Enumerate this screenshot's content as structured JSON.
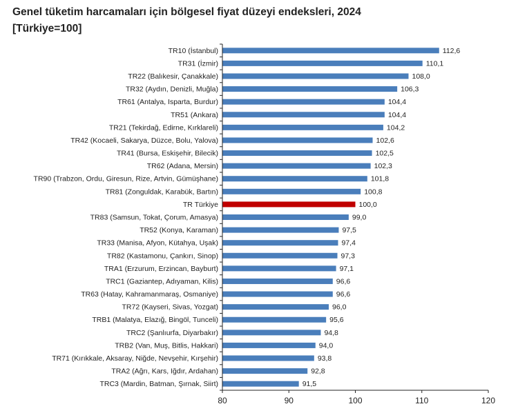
{
  "chart_data": {
    "type": "bar",
    "orientation": "horizontal",
    "title": "Genel tüketim harcamaları için bölgesel fiyat düzeyi endeksleri, 2024",
    "subtitle": "[Türkiye=100]",
    "categories": [
      "TR10 (İstanbul)",
      "TR31 (İzmir)",
      "TR22 (Balıkesir, Çanakkale)",
      "TR32 (Aydın, Denizli, Muğla)",
      "TR61 (Antalya, Isparta, Burdur)",
      "TR51 (Ankara)",
      "TR21 (Tekirdağ, Edirne, Kırklareli)",
      "TR42 (Kocaeli, Sakarya, Düzce, Bolu, Yalova)",
      "TR41 (Bursa, Eskişehir, Bilecik)",
      "TR62 (Adana, Mersin)",
      "TR90 (Trabzon, Ordu, Giresun, Rize, Artvin, Gümüşhane)",
      "TR81 (Zonguldak, Karabük, Bartın)",
      "TR Türkiye",
      "TR83 (Samsun, Tokat, Çorum, Amasya)",
      "TR52 (Konya, Karaman)",
      "TR33 (Manisa, Afyon, Kütahya, Uşak)",
      "TR82 (Kastamonu, Çankırı, Sinop)",
      "TRA1 (Erzurum, Erzincan, Bayburt)",
      "TRC1 (Gaziantep, Adıyaman, Kilis)",
      "TR63 (Hatay, Kahramanmaraş, Osmaniye)",
      "TR72 (Kayseri, Sivas, Yozgat)",
      "TRB1 (Malatya, Elazığ, Bingöl, Tunceli)",
      "TRC2 (Şanlıurfa, Diyarbakır)",
      "TRB2 (Van, Muş, Bitlis, Hakkari)",
      "TR71 (Kırıkkale, Aksaray, Niğde, Nevşehir, Kırşehir)",
      "TRA2 (Ağrı, Kars, Iğdır, Ardahan)",
      "TRC3 (Mardin, Batman, Şırnak, Siirt)"
    ],
    "values": [
      112.6,
      110.1,
      108.0,
      106.3,
      104.4,
      104.4,
      104.2,
      102.6,
      102.5,
      102.3,
      101.8,
      100.8,
      100.0,
      99.0,
      97.5,
      97.4,
      97.3,
      97.1,
      96.6,
      96.6,
      96.0,
      95.6,
      94.8,
      94.0,
      93.8,
      92.8,
      91.5
    ],
    "value_labels": [
      "112,6",
      "110,1",
      "108,0",
      "106,3",
      "104,4",
      "104,4",
      "104,2",
      "102,6",
      "102,5",
      "102,3",
      "101,8",
      "100,8",
      "100,0",
      "99,0",
      "97,5",
      "97,4",
      "97,3",
      "97,1",
      "96,6",
      "96,6",
      "96,0",
      "95,6",
      "94,8",
      "94,0",
      "93,8",
      "92,8",
      "91,5"
    ],
    "highlight": "TR Türkiye",
    "xlim": [
      80,
      120
    ],
    "xticks": [
      "80",
      "90",
      "100",
      "110",
      "120"
    ],
    "xtick_values": [
      80,
      90,
      100,
      110,
      120
    ],
    "grid": false,
    "colors": {
      "bar": "#4a7ebb",
      "highlight": "#c00000"
    }
  }
}
